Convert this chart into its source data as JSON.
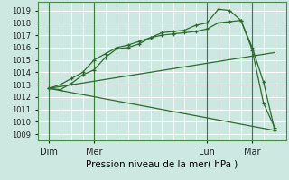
{
  "title": "Pression niveau de la mer( hPa )",
  "bg_color": "#cce8e0",
  "grid_color": "#ffffff",
  "line_color": "#2d6b2d",
  "ylim": [
    1008.5,
    1019.7
  ],
  "yticks": [
    1009,
    1010,
    1011,
    1012,
    1013,
    1014,
    1015,
    1016,
    1017,
    1018,
    1019
  ],
  "xtick_labels": [
    "Dim",
    "Mer",
    "Lun",
    "Mar"
  ],
  "xtick_pos": [
    0,
    24,
    84,
    108
  ],
  "xlim": [
    -6,
    126
  ],
  "vlines": [
    0,
    24,
    84,
    108
  ],
  "line1_x": [
    0,
    6,
    12,
    18,
    24,
    30,
    36,
    42,
    48,
    54,
    60,
    66,
    72,
    78,
    84,
    90,
    96,
    102,
    108,
    114,
    120
  ],
  "line1_y": [
    1012.7,
    1012.6,
    1013.1,
    1013.8,
    1014.2,
    1015.2,
    1015.9,
    1016.0,
    1016.3,
    1016.8,
    1017.2,
    1017.3,
    1017.4,
    1017.8,
    1018.0,
    1019.1,
    1019.0,
    1018.2,
    1016.0,
    1013.2,
    1009.3
  ],
  "line2_x": [
    0,
    6,
    12,
    18,
    24,
    30,
    36,
    42,
    48,
    54,
    60,
    66,
    72,
    78,
    84,
    90,
    96,
    102,
    108,
    114,
    120
  ],
  "line2_y": [
    1012.7,
    1013.0,
    1013.5,
    1014.0,
    1015.0,
    1015.5,
    1016.0,
    1016.2,
    1016.5,
    1016.8,
    1017.0,
    1017.1,
    1017.2,
    1017.3,
    1017.5,
    1018.0,
    1018.1,
    1018.2,
    1015.8,
    1011.5,
    1009.5
  ],
  "line3_x": [
    0,
    120
  ],
  "line3_y": [
    1012.7,
    1015.6
  ],
  "line4_x": [
    0,
    120
  ],
  "line4_y": [
    1012.7,
    1009.3
  ]
}
